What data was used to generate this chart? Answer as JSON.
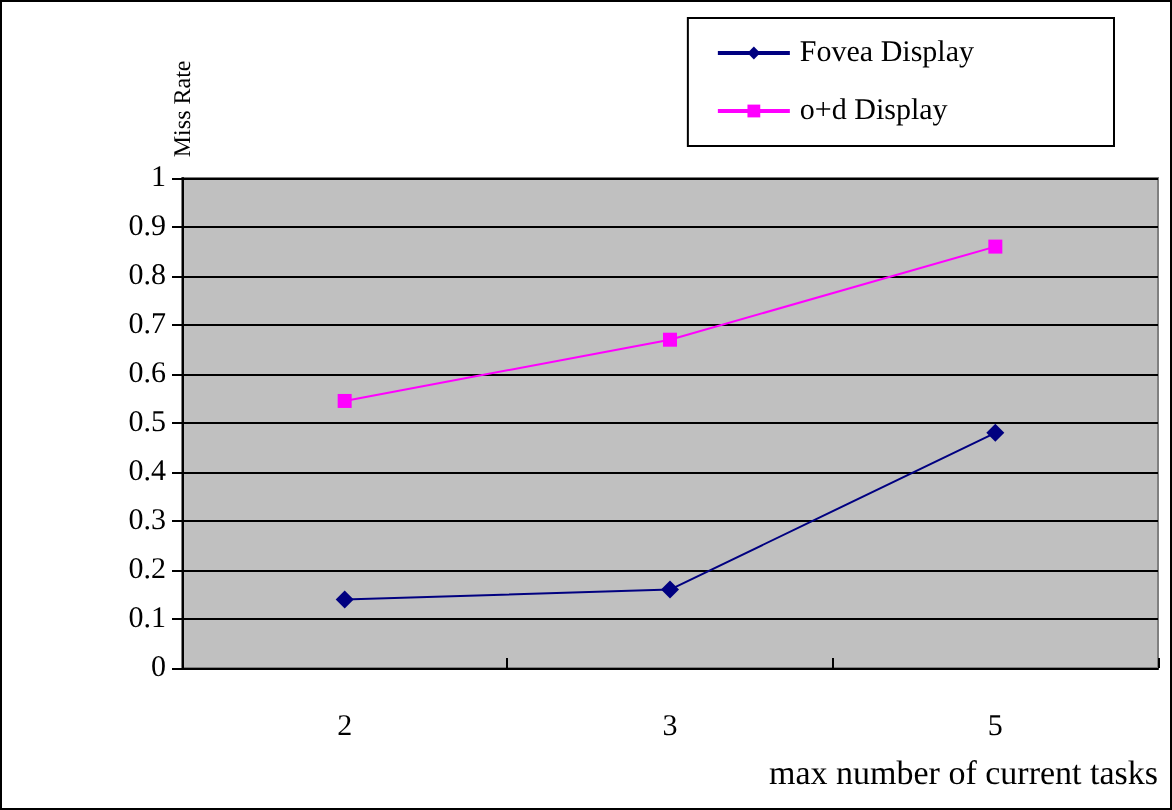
{
  "chart_data": {
    "type": "line",
    "xlabel": "max number of current tasks",
    "ylabel": "Miss Rate",
    "categories": [
      "2",
      "3",
      "5"
    ],
    "series": [
      {
        "name": "Fovea Display",
        "color": "#000080",
        "marker": "diamond",
        "values": [
          0.14,
          0.16,
          0.48
        ]
      },
      {
        "name": "o+d Display",
        "color": "#ff00ff",
        "marker": "square",
        "values": [
          0.545,
          0.67,
          0.86
        ]
      }
    ],
    "ylim": [
      0,
      1
    ],
    "yticks": [
      0,
      0.1,
      0.2,
      0.3,
      0.4,
      0.5,
      0.6,
      0.7,
      0.8,
      0.9,
      1
    ],
    "grid": "y",
    "legend": "top right",
    "line_style": "solid"
  }
}
